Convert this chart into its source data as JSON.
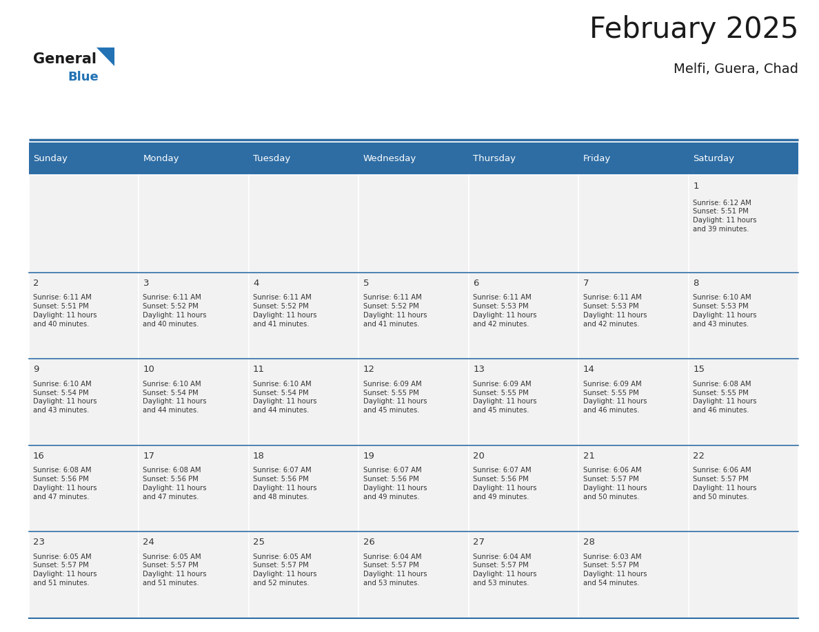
{
  "title": "February 2025",
  "subtitle": "Melfi, Guera, Chad",
  "days_of_week": [
    "Sunday",
    "Monday",
    "Tuesday",
    "Wednesday",
    "Thursday",
    "Friday",
    "Saturday"
  ],
  "header_bg": "#2E6DA4",
  "header_text": "#FFFFFF",
  "cell_bg_odd": "#F2F2F2",
  "cell_bg_even": "#FFFFFF",
  "cell_border_color": "#CCCCCC",
  "row_sep_color": "#2E6DA4",
  "day_number_color": "#333333",
  "info_text_color": "#333333",
  "title_color": "#1a1a1a",
  "logo_general_color": "#1a1a1a",
  "logo_blue_color": "#2272B4",
  "calendar_data": [
    [
      null,
      null,
      null,
      null,
      null,
      null,
      {
        "day": 1,
        "sunrise": "6:12 AM",
        "sunset": "5:51 PM",
        "daylight": "11 hours\nand 39 minutes."
      }
    ],
    [
      {
        "day": 2,
        "sunrise": "6:11 AM",
        "sunset": "5:51 PM",
        "daylight": "11 hours\nand 40 minutes."
      },
      {
        "day": 3,
        "sunrise": "6:11 AM",
        "sunset": "5:52 PM",
        "daylight": "11 hours\nand 40 minutes."
      },
      {
        "day": 4,
        "sunrise": "6:11 AM",
        "sunset": "5:52 PM",
        "daylight": "11 hours\nand 41 minutes."
      },
      {
        "day": 5,
        "sunrise": "6:11 AM",
        "sunset": "5:52 PM",
        "daylight": "11 hours\nand 41 minutes."
      },
      {
        "day": 6,
        "sunrise": "6:11 AM",
        "sunset": "5:53 PM",
        "daylight": "11 hours\nand 42 minutes."
      },
      {
        "day": 7,
        "sunrise": "6:11 AM",
        "sunset": "5:53 PM",
        "daylight": "11 hours\nand 42 minutes."
      },
      {
        "day": 8,
        "sunrise": "6:10 AM",
        "sunset": "5:53 PM",
        "daylight": "11 hours\nand 43 minutes."
      }
    ],
    [
      {
        "day": 9,
        "sunrise": "6:10 AM",
        "sunset": "5:54 PM",
        "daylight": "11 hours\nand 43 minutes."
      },
      {
        "day": 10,
        "sunrise": "6:10 AM",
        "sunset": "5:54 PM",
        "daylight": "11 hours\nand 44 minutes."
      },
      {
        "day": 11,
        "sunrise": "6:10 AM",
        "sunset": "5:54 PM",
        "daylight": "11 hours\nand 44 minutes."
      },
      {
        "day": 12,
        "sunrise": "6:09 AM",
        "sunset": "5:55 PM",
        "daylight": "11 hours\nand 45 minutes."
      },
      {
        "day": 13,
        "sunrise": "6:09 AM",
        "sunset": "5:55 PM",
        "daylight": "11 hours\nand 45 minutes."
      },
      {
        "day": 14,
        "sunrise": "6:09 AM",
        "sunset": "5:55 PM",
        "daylight": "11 hours\nand 46 minutes."
      },
      {
        "day": 15,
        "sunrise": "6:08 AM",
        "sunset": "5:55 PM",
        "daylight": "11 hours\nand 46 minutes."
      }
    ],
    [
      {
        "day": 16,
        "sunrise": "6:08 AM",
        "sunset": "5:56 PM",
        "daylight": "11 hours\nand 47 minutes."
      },
      {
        "day": 17,
        "sunrise": "6:08 AM",
        "sunset": "5:56 PM",
        "daylight": "11 hours\nand 47 minutes."
      },
      {
        "day": 18,
        "sunrise": "6:07 AM",
        "sunset": "5:56 PM",
        "daylight": "11 hours\nand 48 minutes."
      },
      {
        "day": 19,
        "sunrise": "6:07 AM",
        "sunset": "5:56 PM",
        "daylight": "11 hours\nand 49 minutes."
      },
      {
        "day": 20,
        "sunrise": "6:07 AM",
        "sunset": "5:56 PM",
        "daylight": "11 hours\nand 49 minutes."
      },
      {
        "day": 21,
        "sunrise": "6:06 AM",
        "sunset": "5:57 PM",
        "daylight": "11 hours\nand 50 minutes."
      },
      {
        "day": 22,
        "sunrise": "6:06 AM",
        "sunset": "5:57 PM",
        "daylight": "11 hours\nand 50 minutes."
      }
    ],
    [
      {
        "day": 23,
        "sunrise": "6:05 AM",
        "sunset": "5:57 PM",
        "daylight": "11 hours\nand 51 minutes."
      },
      {
        "day": 24,
        "sunrise": "6:05 AM",
        "sunset": "5:57 PM",
        "daylight": "11 hours\nand 51 minutes."
      },
      {
        "day": 25,
        "sunrise": "6:05 AM",
        "sunset": "5:57 PM",
        "daylight": "11 hours\nand 52 minutes."
      },
      {
        "day": 26,
        "sunrise": "6:04 AM",
        "sunset": "5:57 PM",
        "daylight": "11 hours\nand 53 minutes."
      },
      {
        "day": 27,
        "sunrise": "6:04 AM",
        "sunset": "5:57 PM",
        "daylight": "11 hours\nand 53 minutes."
      },
      {
        "day": 28,
        "sunrise": "6:03 AM",
        "sunset": "5:57 PM",
        "daylight": "11 hours\nand 54 minutes."
      },
      null
    ]
  ],
  "fig_width": 11.88,
  "fig_height": 9.18,
  "day_name_fontsize": 9.5,
  "day_number_fontsize": 9.5,
  "info_fontsize": 7.2
}
